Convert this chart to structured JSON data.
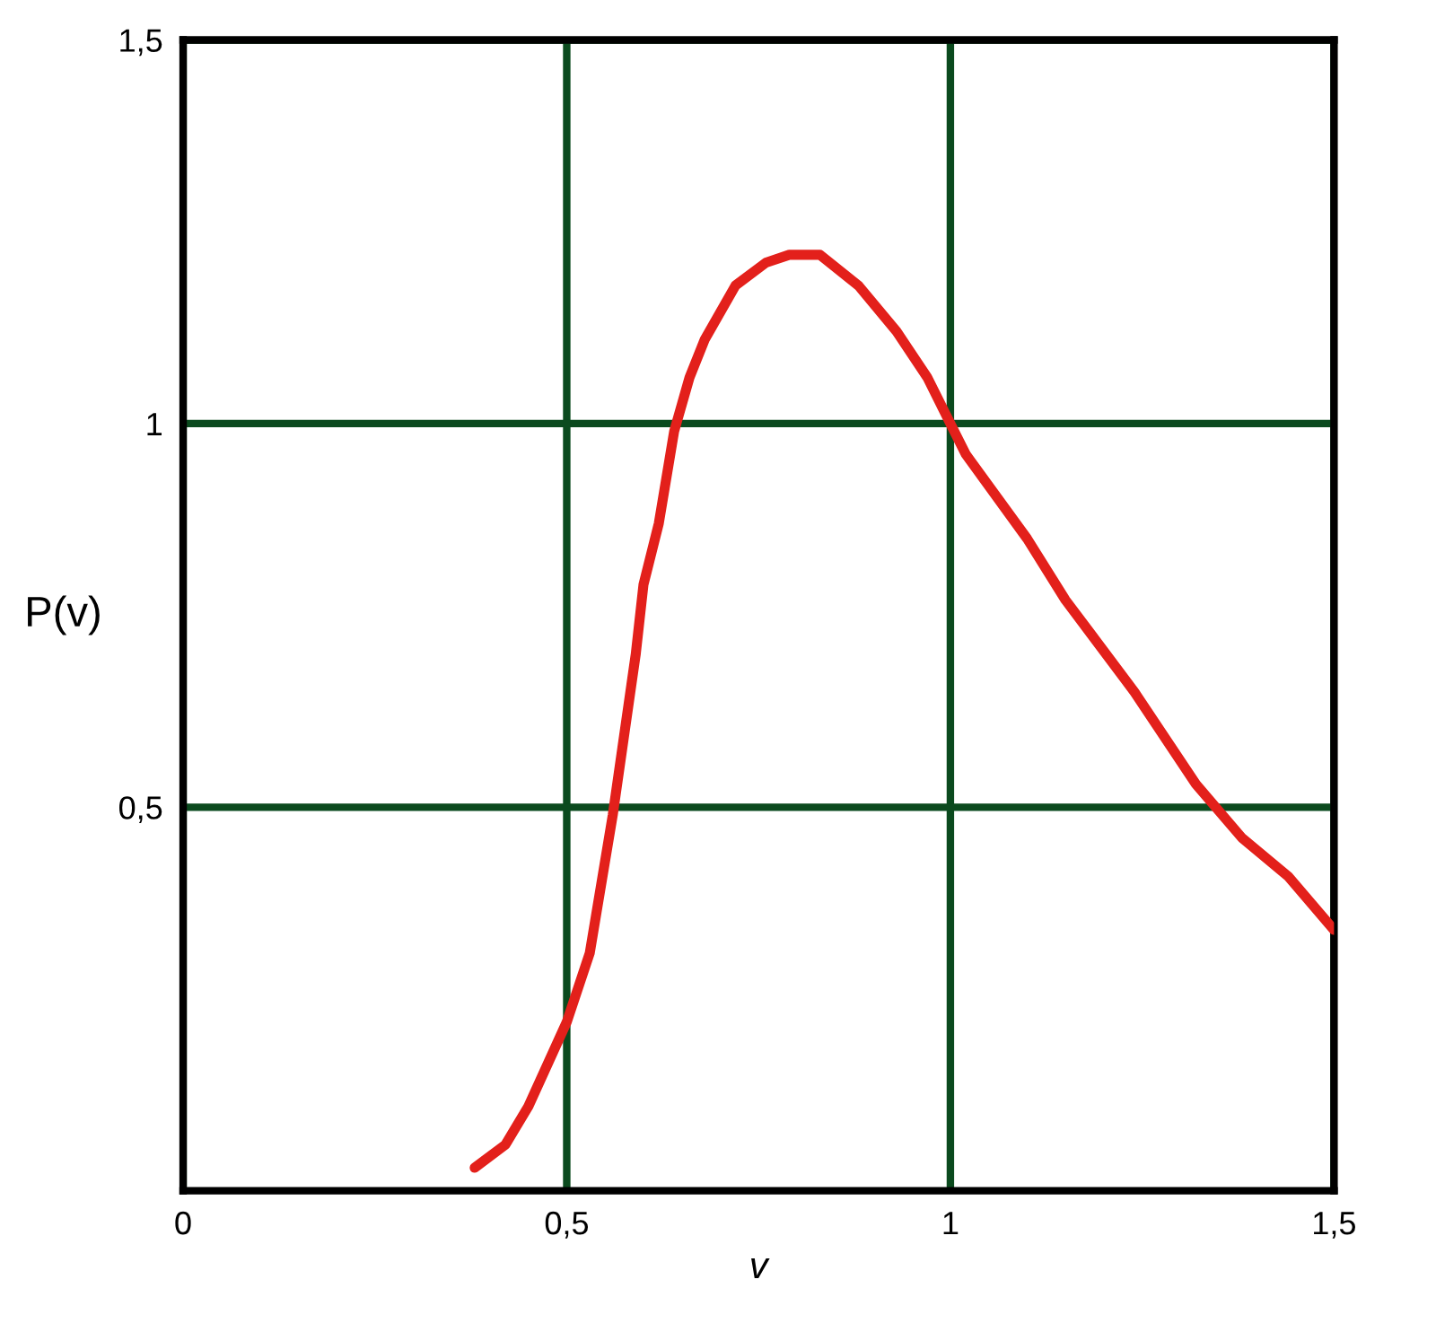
{
  "chart_data": {
    "type": "line",
    "xlabel": "v",
    "ylabel": "P(v)",
    "xlim": [
      0,
      1.5
    ],
    "ylim": [
      0,
      1.5
    ],
    "xticks": [
      {
        "value": 0,
        "label": "0"
      },
      {
        "value": 0.5,
        "label": "0,5"
      },
      {
        "value": 1,
        "label": "1"
      },
      {
        "value": 1.5,
        "label": "1,5"
      }
    ],
    "yticks": [
      {
        "value": 0.5,
        "label": "0,5"
      },
      {
        "value": 1,
        "label": "1"
      },
      {
        "value": 1.5,
        "label": "1,5"
      }
    ],
    "grid": true,
    "series": [
      {
        "color": "#e3201b",
        "x": [
          0.38,
          0.42,
          0.45,
          0.5,
          0.53,
          0.56,
          0.59,
          0.6,
          0.62,
          0.64,
          0.66,
          0.68,
          0.72,
          0.76,
          0.79,
          0.83,
          0.88,
          0.93,
          0.97,
          1.0,
          1.02,
          1.1,
          1.15,
          1.18,
          1.24,
          1.32,
          1.38,
          1.44,
          1.5
        ],
        "values": [
          0.03,
          0.06,
          0.11,
          0.22,
          0.31,
          0.49,
          0.7,
          0.79,
          0.87,
          0.99,
          1.06,
          1.11,
          1.18,
          1.21,
          1.22,
          1.22,
          1.18,
          1.12,
          1.06,
          1.0,
          0.96,
          0.85,
          0.77,
          0.73,
          0.65,
          0.53,
          0.46,
          0.41,
          0.34
        ]
      }
    ]
  }
}
